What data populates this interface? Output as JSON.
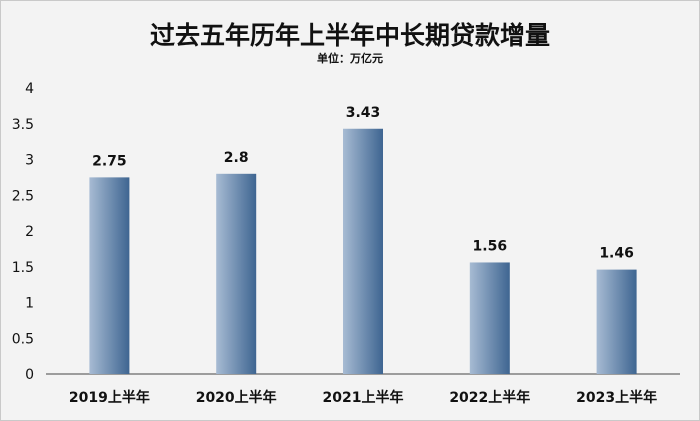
{
  "chart_data": {
    "type": "bar",
    "title": "过去五年历年上半年中长期贷款增量",
    "subtitle": "单位：万亿元",
    "categories": [
      "2019上半年",
      "2020上半年",
      "2021上半年",
      "2022上半年",
      "2023上半年"
    ],
    "values": [
      2.75,
      2.8,
      3.43,
      1.56,
      1.46
    ],
    "value_labels": [
      "2.75",
      "2.8",
      "3.43",
      "1.56",
      "1.46"
    ],
    "yticks": [
      "0",
      "0.5",
      "1",
      "1.5",
      "2",
      "2.5",
      "3",
      "3.5",
      "4"
    ],
    "ylim": [
      0,
      4
    ],
    "grid": false,
    "bar_gradient": [
      "#a7bbd3",
      "#3e6591"
    ]
  }
}
